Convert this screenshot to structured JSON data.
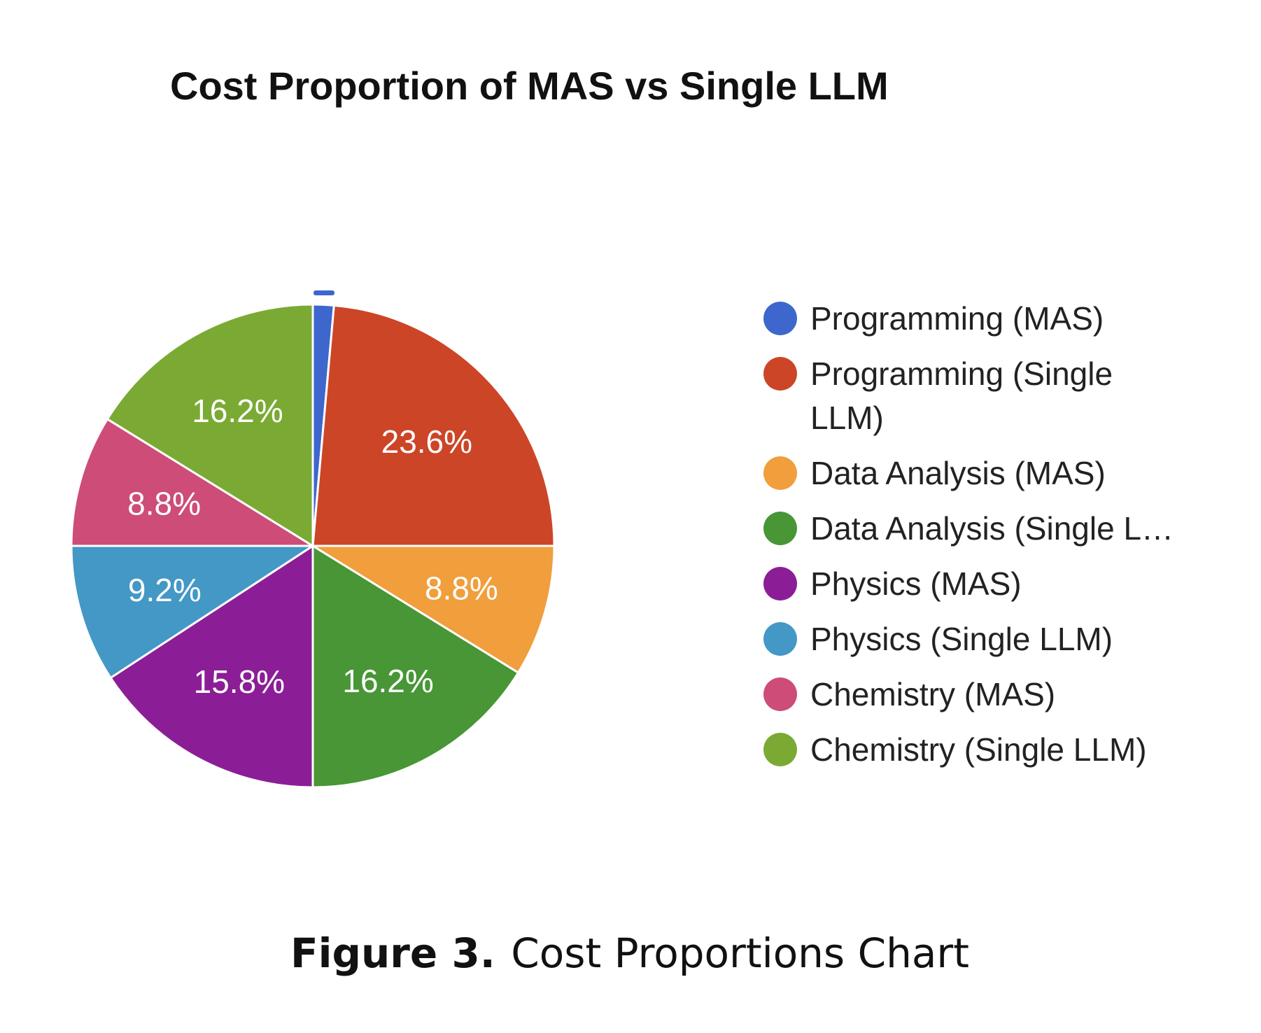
{
  "chart_data": {
    "type": "pie",
    "title": "Cost Proportion of MAS vs Single LLM",
    "start_angle_deg": 0,
    "slices": [
      {
        "label": "Programming (MAS)",
        "legend_lines": [
          "Programming (MAS)"
        ],
        "value": 1.4,
        "display": "",
        "color": "#3d67cc"
      },
      {
        "label": "Programming (Single LLM)",
        "legend_lines": [
          "Programming (Single",
          "LLM)"
        ],
        "value": 23.6,
        "display": "23.6%",
        "color": "#cc4527"
      },
      {
        "label": "Data Analysis (MAS)",
        "legend_lines": [
          "Data Analysis (MAS)"
        ],
        "value": 8.8,
        "display": "8.8%",
        "color": "#f19e3c"
      },
      {
        "label": "Data Analysis (Single LLM)",
        "legend_lines": [
          "Data Analysis (Single L…"
        ],
        "value": 16.2,
        "display": "16.2%",
        "color": "#489636"
      },
      {
        "label": "Physics (MAS)",
        "legend_lines": [
          "Physics (MAS)"
        ],
        "value": 15.8,
        "display": "15.8%",
        "color": "#8b1e96"
      },
      {
        "label": "Physics (Single LLM)",
        "legend_lines": [
          "Physics (Single LLM)"
        ],
        "value": 9.2,
        "display": "9.2%",
        "color": "#4398c6"
      },
      {
        "label": "Chemistry (MAS)",
        "legend_lines": [
          "Chemistry (MAS)"
        ],
        "value": 8.8,
        "display": "8.8%",
        "color": "#cd4d78"
      },
      {
        "label": "Chemistry (Single LLM)",
        "legend_lines": [
          "Chemistry (Single LLM)"
        ],
        "value": 16.2,
        "display": "16.2%",
        "color": "#7aaa34"
      }
    ],
    "legend_position": "right"
  },
  "caption": {
    "prefix": "Figure 3.",
    "text": "Cost Proportions Chart"
  }
}
